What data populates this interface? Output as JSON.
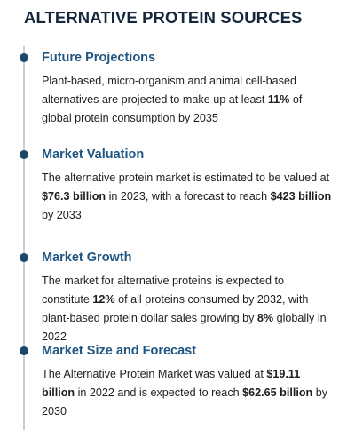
{
  "title": "ALTERNATIVE PROTEIN SOURCES",
  "items": [
    {
      "heading": "Future Projections",
      "body": [
        {
          "text": "Plant-based, micro-organism and animal cell-based alternatives are projected to make up at least ",
          "bold": false
        },
        {
          "text": "11%",
          "bold": true
        },
        {
          "text": " of global protein consumption by 2035",
          "bold": false
        }
      ]
    },
    {
      "heading": "Market Valuation",
      "body": [
        {
          "text": "The alternative protein market is estimated to be valued at ",
          "bold": false
        },
        {
          "text": "$76.3 billion",
          "bold": true
        },
        {
          "text": " in 2023, with a forecast to reach ",
          "bold": false
        },
        {
          "text": "$423 billion",
          "bold": true
        },
        {
          "text": " by 2033",
          "bold": false
        }
      ]
    },
    {
      "heading": "Market Growth",
      "body": [
        {
          "text": "The market for alternative proteins is expected to constitute ",
          "bold": false
        },
        {
          "text": "12%",
          "bold": true
        },
        {
          "text": " of all proteins consumed by 2032, with plant-based protein dollar sales growing by ",
          "bold": false
        },
        {
          "text": "8%",
          "bold": true
        },
        {
          "text": " globally in 2022",
          "bold": false
        }
      ]
    },
    {
      "heading": "Market Size and Forecast",
      "body": [
        {
          "text": "The Alternative Protein Market was valued at ",
          "bold": false
        },
        {
          "text": "$19.11 billion",
          "bold": true
        },
        {
          "text": " in 2022 and is expected to reach ",
          "bold": false
        },
        {
          "text": "$62.65 billion",
          "bold": true
        },
        {
          "text": " by 2030",
          "bold": false
        }
      ]
    }
  ]
}
